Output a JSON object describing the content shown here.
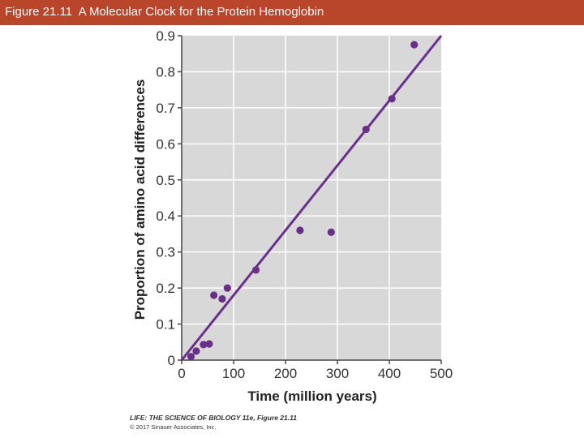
{
  "header": {
    "title": "Figure 21.11  A Molecular Clock for the Protein Hemoglobin"
  },
  "credits": {
    "line1": "LIFE: THE SCIENCE OF BIOLOGY 11e, Figure 21.11",
    "line2": "© 2017 Sinauer Associates, Inc."
  },
  "colors": {
    "header_bg": "#b9452b",
    "plot_bg": "#d8d8d8",
    "grid": "#ffffff",
    "series": "#6a2f8a"
  },
  "chart_data": {
    "type": "scatter",
    "xlabel": "Time (million years)",
    "ylabel": "Proportion of amino acid differences",
    "xlim": [
      0,
      500
    ],
    "ylim": [
      0,
      0.9
    ],
    "xticks": [
      "0",
      "100",
      "200",
      "300",
      "400",
      "500"
    ],
    "yticks": [
      "0",
      "0.1",
      "0.2",
      "0.3",
      "0.4",
      "0.5",
      "0.6",
      "0.7",
      "0.8",
      "0.9"
    ],
    "grid": true,
    "points": [
      {
        "x": 18,
        "y": 0.01
      },
      {
        "x": 28,
        "y": 0.025
      },
      {
        "x": 42,
        "y": 0.043
      },
      {
        "x": 53,
        "y": 0.045
      },
      {
        "x": 62,
        "y": 0.18
      },
      {
        "x": 78,
        "y": 0.17
      },
      {
        "x": 88,
        "y": 0.2
      },
      {
        "x": 143,
        "y": 0.25
      },
      {
        "x": 228,
        "y": 0.36
      },
      {
        "x": 288,
        "y": 0.355
      },
      {
        "x": 355,
        "y": 0.64
      },
      {
        "x": 405,
        "y": 0.725
      },
      {
        "x": 448,
        "y": 0.875
      }
    ],
    "fit_line": {
      "x": [
        0,
        500
      ],
      "y": [
        0,
        0.9
      ]
    }
  }
}
